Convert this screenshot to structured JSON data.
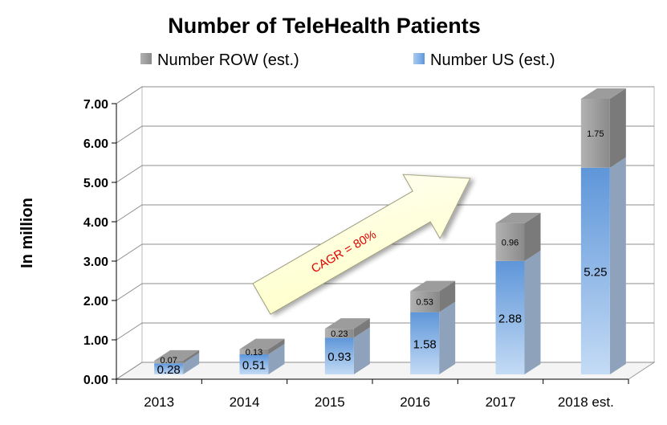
{
  "chart_data": {
    "type": "bar",
    "stacked": true,
    "three_d": true,
    "title": "Number of TeleHealth Patients",
    "ylabel": "In million",
    "categories": [
      "2013",
      "2014",
      "2015",
      "2016",
      "2017",
      "2018 est."
    ],
    "ylim": [
      0,
      7
    ],
    "yticks": [
      "0.00",
      "1.00",
      "2.00",
      "3.00",
      "4.00",
      "5.00",
      "6.00",
      "7.00"
    ],
    "grid": true,
    "legend_position": "top",
    "series": [
      {
        "name": "Number US (est.)",
        "values": [
          0.28,
          0.51,
          0.93,
          1.58,
          2.88,
          5.25
        ],
        "labels": [
          "0.28",
          "0.51",
          "0.93",
          "1.58",
          "2.88",
          "5.25"
        ],
        "color": "#8fb8e8"
      },
      {
        "name": "Number ROW (est.)",
        "values": [
          0.07,
          0.13,
          0.23,
          0.53,
          0.96,
          1.75
        ],
        "labels": [
          "0.07",
          "0.13",
          "0.23",
          "0.53",
          "0.96",
          "1.75"
        ],
        "color": "#9a9a9a"
      }
    ],
    "annotation": {
      "text": "CAGR = 80%",
      "color": "#e00000",
      "arrow_fill": "#ffffd0"
    }
  }
}
